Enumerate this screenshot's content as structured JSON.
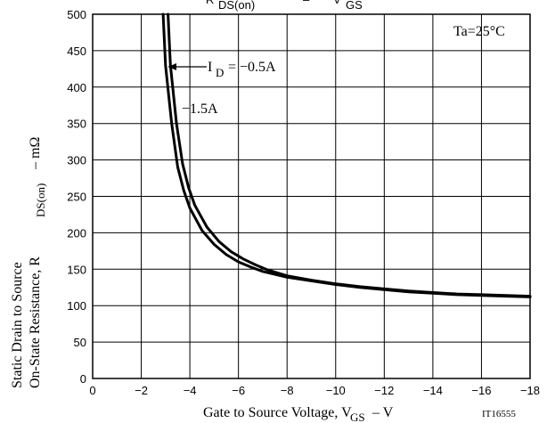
{
  "chart_data": {
    "type": "line",
    "title_visible_fragment": {
      "prefix": "R",
      "subscript": "DS(on)",
      "dash": "–",
      "suffix": "V",
      "suffix_subscript": "GS"
    },
    "annotation_temp": "Ta=25°C",
    "xlabel": {
      "text": "Gate to Source Voltage, V",
      "subscript": "GS",
      "unit": " – V"
    },
    "ylabel": {
      "line1": "Static Drain to Source",
      "line2_prefix": "On-State Resistance, R",
      "line2_subscript": "DS(on)",
      "line2_suffix": " – mΩ"
    },
    "figure_id": "IT16555",
    "x_ticks": [
      "0",
      "−2",
      "−4",
      "−6",
      "−8",
      "−10",
      "−12",
      "−14",
      "−16",
      "−18"
    ],
    "x_tick_values": [
      0,
      -2,
      -4,
      -6,
      -8,
      -10,
      -12,
      -14,
      -16,
      -18
    ],
    "y_ticks": [
      "0",
      "50",
      "100",
      "150",
      "200",
      "250",
      "300",
      "350",
      "400",
      "450",
      "500"
    ],
    "y_tick_values": [
      0,
      50,
      100,
      150,
      200,
      250,
      300,
      350,
      400,
      450,
      500
    ],
    "xlim": [
      0,
      -18
    ],
    "ylim": [
      0,
      500
    ],
    "grid": true,
    "series": [
      {
        "name": "I_D = −0.5A",
        "label_prefix": "I",
        "label_subscript": "D",
        "label_suffix": "= −0.5A",
        "points": [
          [
            -2.9,
            500
          ],
          [
            -3.0,
            430
          ],
          [
            -3.25,
            350
          ],
          [
            -3.5,
            290
          ],
          [
            -3.75,
            258
          ],
          [
            -4.0,
            234
          ],
          [
            -4.5,
            203
          ],
          [
            -5.0,
            184
          ],
          [
            -5.5,
            170
          ],
          [
            -6.0,
            160
          ],
          [
            -6.5,
            153
          ],
          [
            -7.0,
            147
          ],
          [
            -8.0,
            139
          ],
          [
            -9.0,
            134
          ],
          [
            -10.0,
            129
          ],
          [
            -11.0,
            125
          ],
          [
            -12.0,
            122
          ],
          [
            -13.0,
            119
          ],
          [
            -14.0,
            117
          ],
          [
            -15.0,
            115
          ],
          [
            -16.0,
            114
          ],
          [
            -17.0,
            113
          ],
          [
            -18.0,
            112
          ]
        ]
      },
      {
        "name": "−1.5A",
        "label": "−1.5A",
        "points": [
          [
            -3.1,
            500
          ],
          [
            -3.2,
            430
          ],
          [
            -3.45,
            350
          ],
          [
            -3.7,
            295
          ],
          [
            -3.95,
            262
          ],
          [
            -4.2,
            238
          ],
          [
            -4.7,
            208
          ],
          [
            -5.2,
            188
          ],
          [
            -5.7,
            174
          ],
          [
            -6.2,
            164
          ],
          [
            -6.7,
            156
          ],
          [
            -7.2,
            149
          ],
          [
            -8.0,
            141
          ],
          [
            -9.0,
            135
          ],
          [
            -10.0,
            130
          ],
          [
            -11.0,
            126
          ],
          [
            -12.0,
            123
          ],
          [
            -13.0,
            120
          ],
          [
            -14.0,
            118
          ],
          [
            -15.0,
            116
          ],
          [
            -16.0,
            115
          ],
          [
            -17.0,
            114
          ],
          [
            -18.0,
            113
          ]
        ]
      }
    ]
  }
}
